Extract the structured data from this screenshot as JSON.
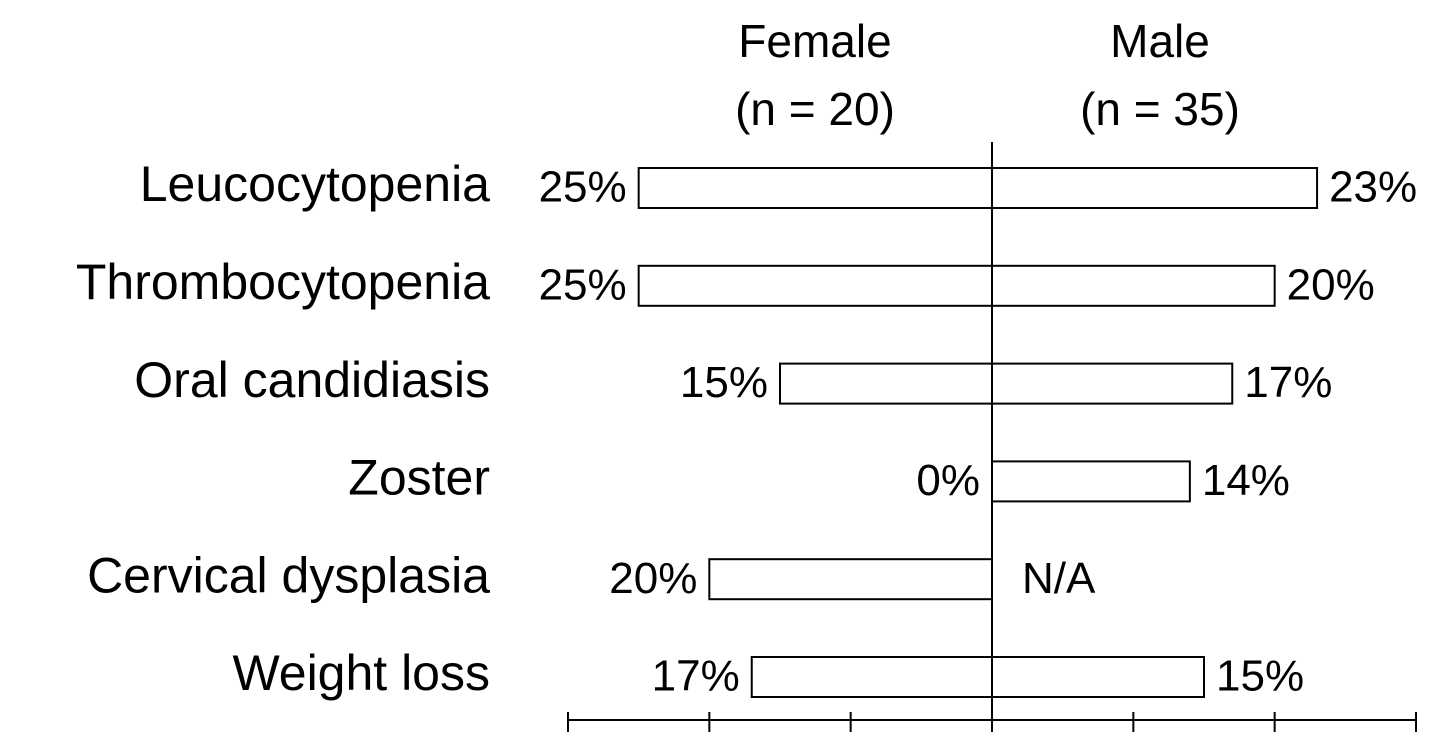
{
  "chart_data": {
    "type": "butterfly",
    "categories": [
      "Leucocytopenia",
      "Thrombocytopenia",
      "Oral candidiasis",
      "Zoster",
      "Cervical dysplasia",
      "Weight loss"
    ],
    "series": [
      {
        "name": "Female",
        "sample": "(n = 20)",
        "side": "left",
        "color": "#ffffff",
        "values": [
          25,
          25,
          15,
          0,
          20,
          17
        ],
        "value_labels": [
          "25%",
          "25%",
          "15%",
          "0%",
          "20%",
          "17%"
        ]
      },
      {
        "name": "Male",
        "sample": "(n = 35)",
        "side": "right",
        "color": "#ffffff",
        "values": [
          23,
          20,
          17,
          14,
          null,
          15
        ],
        "value_labels": [
          "23%",
          "20%",
          "17%",
          "14%",
          "N/A",
          "15%"
        ]
      }
    ],
    "xlim": [
      0,
      30
    ],
    "xticks": [
      0,
      10,
      20,
      30
    ]
  }
}
